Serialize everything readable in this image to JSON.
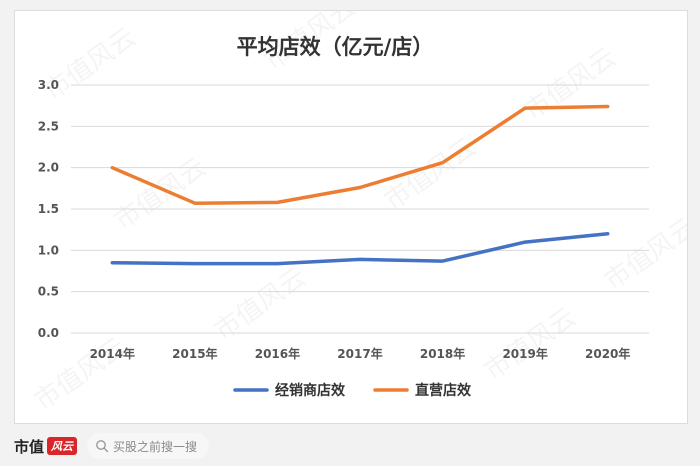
{
  "chart_data": {
    "type": "line",
    "title": "平均店效（亿元/店）",
    "categories": [
      "2014年",
      "2015年",
      "2016年",
      "2017年",
      "2018年",
      "2019年",
      "2020年"
    ],
    "series": [
      {
        "name": "经销商店效",
        "color": "#4472c4",
        "values": [
          0.85,
          0.84,
          0.84,
          0.89,
          0.87,
          1.1,
          1.2
        ]
      },
      {
        "name": "直营店效",
        "color": "#ed7d31",
        "values": [
          2.0,
          1.57,
          1.58,
          1.76,
          2.06,
          2.72,
          2.74
        ]
      }
    ],
    "ylim": [
      0,
      3.0
    ],
    "yticks": [
      "0.0",
      "0.5",
      "1.0",
      "1.5",
      "2.0",
      "2.5",
      "3.0"
    ],
    "grid": true,
    "legend": "bottom",
    "watermark": "市值风云"
  },
  "footer": {
    "brand": "市值",
    "brand_mark": "风云",
    "search_placeholder": "买股之前搜一搜"
  }
}
